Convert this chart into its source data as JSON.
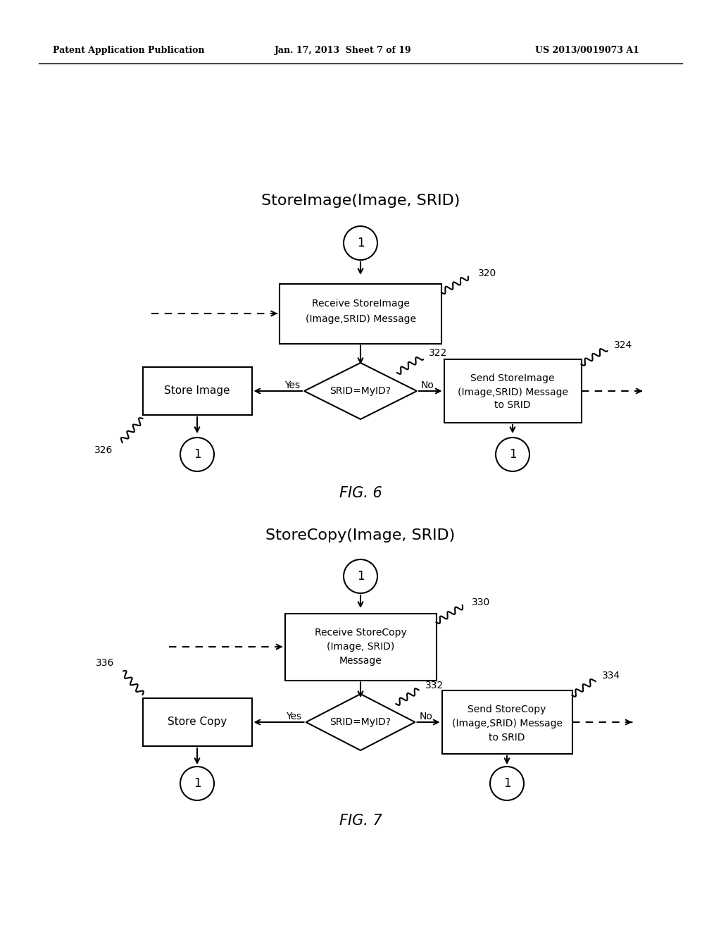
{
  "bg_color": "#ffffff",
  "header_left": "Patent Application Publication",
  "header_mid": "Jan. 17, 2013  Sheet 7 of 19",
  "header_right": "US 2013/0019073 A1",
  "fig6_title": "StoreImage(Image, SRID)",
  "fig7_title": "StoreCopy(Image, SRID)",
  "fig6_label": "FIG. 6",
  "fig7_label": "FIG. 7",
  "line_color": "#000000",
  "text_color": "#000000"
}
